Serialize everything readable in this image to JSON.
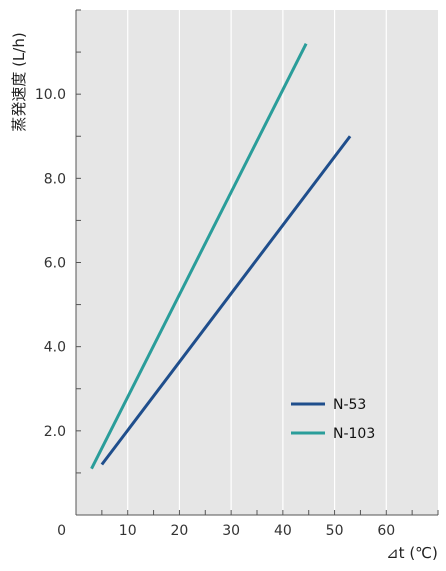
{
  "chart_data": {
    "type": "line",
    "title": "",
    "xlabel": "⊿t (℃)",
    "ylabel": "蒸発速度 (L/h)",
    "xlim": [
      0,
      70
    ],
    "ylim": [
      0,
      12
    ],
    "x_ticks": [
      {
        "value": 0,
        "label": "0"
      },
      {
        "value": 10,
        "label": "10"
      },
      {
        "value": 20,
        "label": "20"
      },
      {
        "value": 30,
        "label": "30"
      },
      {
        "value": 40,
        "label": "40"
      },
      {
        "value": 50,
        "label": "50"
      },
      {
        "value": 60,
        "label": "60"
      }
    ],
    "y_ticks": [
      {
        "value": 2,
        "label": "2.0"
      },
      {
        "value": 4,
        "label": "4.0"
      },
      {
        "value": 6,
        "label": "6.0"
      },
      {
        "value": 8,
        "label": "8.0"
      },
      {
        "value": 10,
        "label": "10.0"
      }
    ],
    "grid": {
      "vertical": true,
      "horizontal": false
    },
    "legend_position": "lower-right",
    "background_color": "#e6e6e6",
    "grid_color": "#ffffff",
    "series": [
      {
        "name": "N-53",
        "color": "#1f4e8c",
        "x": [
          5,
          53
        ],
        "y": [
          1.2,
          9.0
        ]
      },
      {
        "name": "N-103",
        "color": "#2a9d9a",
        "x": [
          3,
          44.5
        ],
        "y": [
          1.1,
          11.2
        ]
      }
    ]
  }
}
